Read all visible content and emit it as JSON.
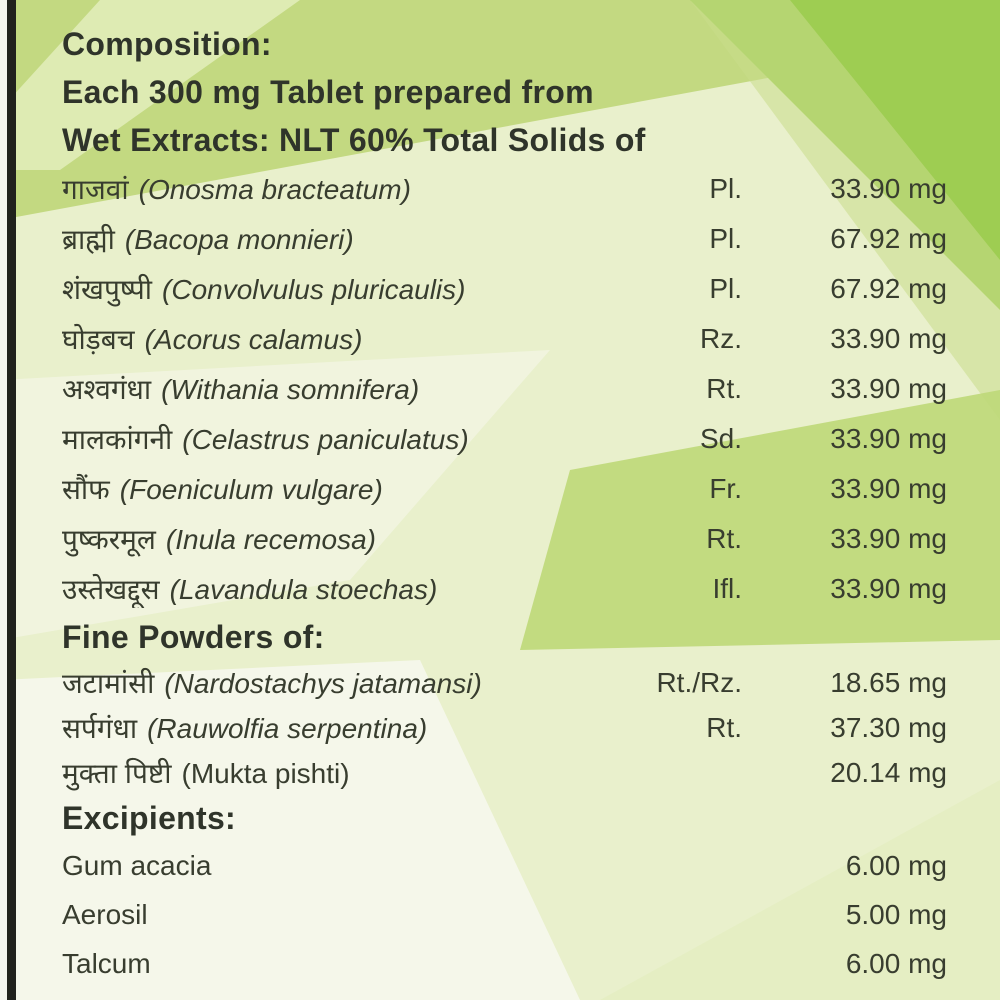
{
  "colors": {
    "bright_green": "#9ecd52",
    "medium_green": "#c3d981",
    "wedge_green": "#bed878",
    "pale_green": "#e9f0cc",
    "near_white": "#f5f7ea",
    "text_dark": "#383d2f",
    "left_edge_dark": "#20211d",
    "left_edge_light": "#f4f4ef"
  },
  "header": {
    "title": "Composition:",
    "subtitle_line1": "Each 300 mg Tablet prepared from",
    "subtitle_line2": "Wet Extracts: NLT 60% Total Solids of"
  },
  "wet_extracts": {
    "rows": [
      {
        "name_hi": "गाजवां",
        "name_latin": "(Onosma bracteatum)",
        "part": "Pl.",
        "amount": "33.90 mg"
      },
      {
        "name_hi": "ब्राह्मी",
        "name_latin": "(Bacopa monnieri)",
        "part": "Pl.",
        "amount": "67.92 mg"
      },
      {
        "name_hi": "शंखपुष्पी",
        "name_latin": "(Convolvulus pluricaulis)",
        "part": "Pl.",
        "amount": "67.92 mg"
      },
      {
        "name_hi": "घोड़बच",
        "name_latin": "(Acorus calamus)",
        "part": "Rz.",
        "amount": "33.90 mg"
      },
      {
        "name_hi": "अश्वगंधा",
        "name_latin": "(Withania somnifera)",
        "part": "Rt.",
        "amount": "33.90 mg"
      },
      {
        "name_hi": "मालकांगनी",
        "name_latin": "(Celastrus paniculatus)",
        "part": "Sd.",
        "amount": "33.90 mg"
      },
      {
        "name_hi": "सौंफ",
        "name_latin": "(Foeniculum vulgare)",
        "part": "Fr.",
        "amount": "33.90 mg"
      },
      {
        "name_hi": "पुष्करमूल",
        "name_latin": "(Inula recemosa)",
        "part": "Rt.",
        "amount": "33.90 mg"
      },
      {
        "name_hi": "उस्तेखद्दूस",
        "name_latin": "(Lavandula stoechas)",
        "part": "Ifl.",
        "amount": "33.90 mg"
      }
    ]
  },
  "fine_powders": {
    "heading": "Fine Powders of:",
    "rows": [
      {
        "name_hi": "जटामांसी",
        "name_latin": "(Nardostachys jatamansi)",
        "part": "Rt./Rz.",
        "amount": "18.65 mg"
      },
      {
        "name_hi": "सर्पगंधा",
        "name_latin": "(Rauwolfia serpentina)",
        "part": "Rt.",
        "amount": "37.30 mg"
      },
      {
        "name_hi": "मुक्ता पिष्टी",
        "name_latin": "(Mukta pishti)",
        "part": "",
        "amount": "20.14 mg"
      }
    ]
  },
  "excipients": {
    "heading": "Excipients:",
    "rows": [
      {
        "name": "Gum acacia",
        "amount": "6.00 mg"
      },
      {
        "name": "Aerosil",
        "amount": "5.00 mg"
      },
      {
        "name": "Talcum",
        "amount": "6.00 mg"
      }
    ]
  }
}
